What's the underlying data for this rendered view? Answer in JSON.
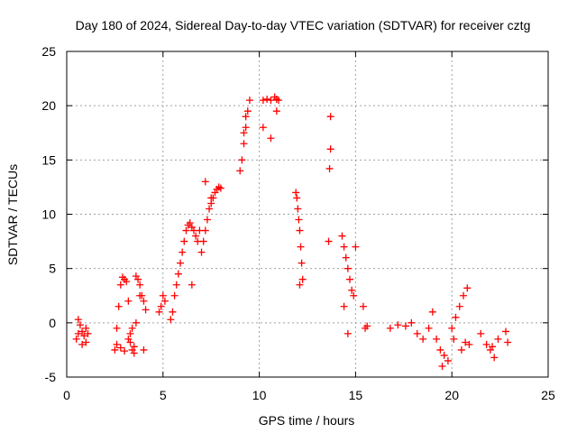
{
  "chart_data": {
    "type": "scatter",
    "title": "Day 180 of 2024, Sidereal Day-to-day VTEC variation (SDTVAR) for receiver cztg",
    "xlabel": "GPS time / hours",
    "ylabel": "SDTVAR / TECUs",
    "xlim": [
      0,
      25
    ],
    "ylim": [
      -5,
      25
    ],
    "xticks": [
      "0",
      "5",
      "10",
      "15",
      "20",
      "25"
    ],
    "yticks": [
      "-5",
      "0",
      "5",
      "10",
      "15",
      "20",
      "25"
    ],
    "grid": true,
    "marker": "+",
    "color": "#ff0000",
    "series": [
      {
        "name": "SDTVAR",
        "x": [
          0.5,
          0.6,
          0.7,
          0.8,
          0.9,
          1.0,
          1.1,
          1.0,
          0.8,
          0.6,
          2.5,
          2.6,
          2.7,
          2.8,
          2.9,
          3.0,
          3.1,
          3.2,
          3.3,
          3.4,
          3.5,
          3.6,
          3.7,
          3.8,
          3.9,
          4.0,
          4.1,
          2.6,
          2.8,
          3.0,
          3.2,
          3.4,
          3.6,
          3.8,
          4.0,
          3.5,
          3.3,
          4.8,
          4.9,
          5.0,
          5.1,
          5.4,
          5.5,
          5.6,
          5.7,
          5.8,
          5.9,
          6.0,
          6.1,
          6.2,
          6.3,
          6.4,
          6.5,
          6.6,
          6.7,
          6.8,
          6.9,
          6.5,
          7.0,
          7.1,
          7.2,
          7.3,
          7.4,
          7.5,
          7.6,
          7.7,
          7.8,
          7.9,
          8.0,
          7.2,
          7.5,
          9.0,
          9.1,
          9.2,
          9.3,
          9.4,
          9.5,
          9.3,
          9.2,
          10.2,
          10.4,
          10.6,
          10.8,
          10.9,
          11.0,
          10.9,
          10.2,
          10.6,
          11.9,
          11.95,
          12.0,
          12.05,
          12.1,
          12.15,
          12.2,
          12.25,
          12.1,
          13.7,
          13.7,
          13.65,
          13.6,
          14.3,
          14.4,
          14.5,
          14.6,
          14.7,
          14.8,
          14.9,
          15.0,
          14.4,
          14.6,
          15.4,
          15.5,
          15.6,
          16.8,
          17.2,
          17.6,
          17.9,
          18.2,
          18.5,
          18.8,
          19.0,
          19.2,
          19.4,
          19.6,
          19.8,
          20.0,
          20.2,
          20.4,
          20.6,
          20.8,
          20.9,
          19.5,
          20.1,
          20.5,
          20.7,
          21.5,
          21.8,
          22.0,
          22.2,
          22.4,
          22.8,
          22.9,
          22.1
        ],
        "y": [
          -1.5,
          0.3,
          -0.2,
          -0.8,
          -1.2,
          -0.5,
          -1.0,
          -1.8,
          -2.0,
          -1.0,
          -2.5,
          -0.5,
          1.5,
          3.5,
          4.2,
          4.0,
          3.8,
          2.0,
          -1.0,
          -2.5,
          -2.8,
          4.3,
          4.0,
          3.5,
          2.5,
          2.0,
          1.2,
          -2.0,
          -2.3,
          -2.6,
          -1.5,
          -0.5,
          0.0,
          2.5,
          -2.5,
          -2.2,
          -1.8,
          1.0,
          1.5,
          2.5,
          2.0,
          0.3,
          1.0,
          2.5,
          3.5,
          4.5,
          5.5,
          6.5,
          7.5,
          8.5,
          9.0,
          9.2,
          8.8,
          8.5,
          8.0,
          7.5,
          8.5,
          3.5,
          6.5,
          7.5,
          8.5,
          9.5,
          10.5,
          11.0,
          11.5,
          12.0,
          12.3,
          12.5,
          12.4,
          13.0,
          11.5,
          14.0,
          15.0,
          16.5,
          18.0,
          19.5,
          20.5,
          19.0,
          17.5,
          20.5,
          20.6,
          20.5,
          20.8,
          20.6,
          20.5,
          19.5,
          18.0,
          17.0,
          12.0,
          11.5,
          10.5,
          9.5,
          8.5,
          7.0,
          5.5,
          4.0,
          3.5,
          19.0,
          16.0,
          14.2,
          7.5,
          8.0,
          7.0,
          6.0,
          5.0,
          4.0,
          3.0,
          2.5,
          7.0,
          1.5,
          -1.0,
          1.5,
          -0.5,
          -0.3,
          -0.5,
          -0.2,
          -0.3,
          0.0,
          -1.0,
          -1.5,
          -0.5,
          1.0,
          -1.5,
          -2.5,
          -3.0,
          -3.5,
          -0.5,
          0.5,
          1.5,
          2.5,
          3.2,
          -2.0,
          -4.0,
          -1.5,
          -2.5,
          -1.8,
          -1.0,
          -2.0,
          -2.5,
          -3.2,
          -1.5,
          -0.8,
          -1.8,
          -2.2
        ]
      }
    ]
  }
}
